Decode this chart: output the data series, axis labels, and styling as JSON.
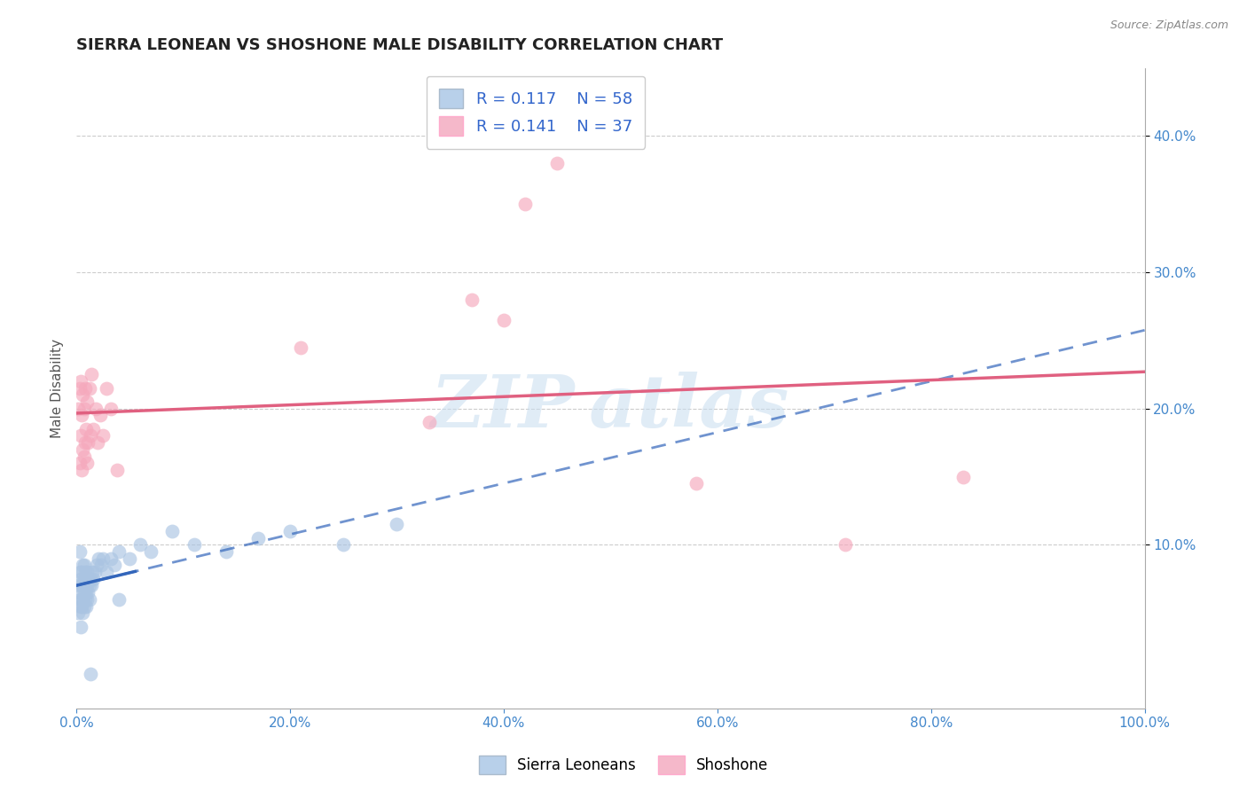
{
  "title": "SIERRA LEONEAN VS SHOSHONE MALE DISABILITY CORRELATION CHART",
  "source": "Source: ZipAtlas.com",
  "ylabel": "Male Disability",
  "xlim": [
    0.0,
    1.0
  ],
  "ylim": [
    -0.02,
    0.45
  ],
  "xticks": [
    0.0,
    0.2,
    0.4,
    0.6,
    0.8,
    1.0
  ],
  "xticklabels": [
    "0.0%",
    "20.0%",
    "40.0%",
    "60.0%",
    "80.0%",
    "100.0%"
  ],
  "yticks_right": [
    0.1,
    0.2,
    0.3,
    0.4
  ],
  "ytick_labels_right": [
    "10.0%",
    "20.0%",
    "30.0%",
    "40.0%"
  ],
  "blue_color": "#aac4e2",
  "pink_color": "#f5a8bc",
  "blue_line_color": "#3366bb",
  "pink_line_color": "#e06080",
  "blue_color_legend": "#b8d0ea",
  "pink_color_legend": "#f5b8ca",
  "sierra_x": [
    0.002,
    0.002,
    0.003,
    0.003,
    0.003,
    0.004,
    0.004,
    0.004,
    0.004,
    0.005,
    0.005,
    0.005,
    0.005,
    0.006,
    0.006,
    0.006,
    0.006,
    0.007,
    0.007,
    0.007,
    0.007,
    0.008,
    0.008,
    0.008,
    0.009,
    0.009,
    0.009,
    0.01,
    0.01,
    0.01,
    0.011,
    0.011,
    0.012,
    0.012,
    0.013,
    0.014,
    0.015,
    0.016,
    0.017,
    0.019,
    0.021,
    0.023,
    0.025,
    0.028,
    0.032,
    0.036,
    0.04,
    0.05,
    0.06,
    0.07,
    0.09,
    0.11,
    0.14,
    0.17,
    0.2,
    0.25,
    0.3,
    0.04
  ],
  "sierra_y": [
    0.05,
    0.07,
    0.06,
    0.08,
    0.095,
    0.04,
    0.055,
    0.065,
    0.075,
    0.055,
    0.06,
    0.07,
    0.08,
    0.05,
    0.06,
    0.07,
    0.085,
    0.055,
    0.065,
    0.075,
    0.085,
    0.06,
    0.07,
    0.08,
    0.055,
    0.065,
    0.075,
    0.06,
    0.07,
    0.08,
    0.065,
    0.075,
    0.06,
    0.07,
    0.075,
    0.07,
    0.08,
    0.075,
    0.08,
    0.085,
    0.09,
    0.085,
    0.09,
    0.08,
    0.09,
    0.085,
    0.095,
    0.09,
    0.1,
    0.095,
    0.11,
    0.1,
    0.095,
    0.105,
    0.11,
    0.1,
    0.115,
    0.06
  ],
  "sierra_outlier_x": [
    0.013
  ],
  "sierra_outlier_y": [
    0.005
  ],
  "shoshone_x": [
    0.002,
    0.003,
    0.003,
    0.004,
    0.004,
    0.005,
    0.005,
    0.006,
    0.006,
    0.007,
    0.007,
    0.008,
    0.008,
    0.009,
    0.01,
    0.01,
    0.011,
    0.012,
    0.013,
    0.014,
    0.016,
    0.018,
    0.02,
    0.022,
    0.025,
    0.028,
    0.032,
    0.038,
    0.21,
    0.33,
    0.37,
    0.4,
    0.42,
    0.45,
    0.58,
    0.72,
    0.83
  ],
  "shoshone_y": [
    0.2,
    0.16,
    0.215,
    0.18,
    0.22,
    0.155,
    0.195,
    0.17,
    0.21,
    0.165,
    0.2,
    0.175,
    0.215,
    0.185,
    0.16,
    0.205,
    0.175,
    0.215,
    0.18,
    0.225,
    0.185,
    0.2,
    0.175,
    0.195,
    0.18,
    0.215,
    0.2,
    0.155,
    0.245,
    0.19,
    0.28,
    0.265,
    0.35,
    0.38,
    0.145,
    0.1,
    0.15
  ],
  "background_color": "#ffffff",
  "grid_color": "#cccccc",
  "watermark_color": "#c8ddf0"
}
